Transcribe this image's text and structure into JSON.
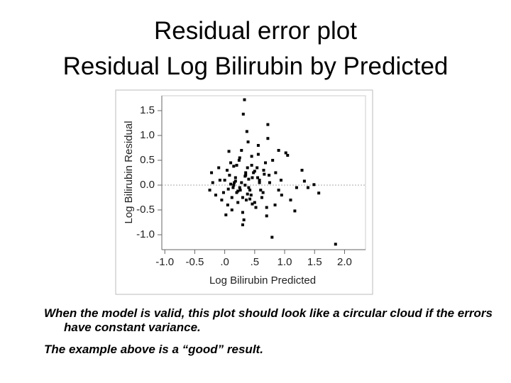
{
  "slide_title": [
    "Residual error plot",
    "Residual Log Bilirubin by Predicted"
  ],
  "chart_data": {
    "type": "scatter",
    "xlabel": "Log Bilirubin Predicted",
    "ylabel": "Log Bilirubin Residual",
    "color": "#000000",
    "xlim": [
      -1.05,
      2.35
    ],
    "ylim": [
      -1.3,
      1.8
    ],
    "xticks": [
      {
        "value": -1,
        "label": "-1.0"
      },
      -0.5,
      {
        "value": 0,
        "label": ".0"
      },
      {
        "value": 0.5,
        "label": ".5"
      },
      {
        "value": 1,
        "label": "1.0"
      },
      1.5,
      {
        "value": 2,
        "label": "2.0"
      }
    ],
    "yticks": [
      {
        "value": -1,
        "label": "-1.0"
      },
      -0.5,
      {
        "value": 0,
        "label": "0.0"
      },
      0.5,
      {
        "value": 1,
        "label": "1.0"
      },
      1.5
    ],
    "x": [
      0.33,
      0.31,
      0.37,
      0.39,
      0.72,
      0.72,
      0.56,
      0.9,
      1.02,
      1.85,
      0.79,
      0.07,
      1.29,
      1.49,
      1.57,
      1.39,
      1.33,
      1.17,
      -0.22,
      -0.25,
      -0.2,
      -0.15,
      -0.1,
      -0.05,
      0,
      0.05,
      0.1,
      0.15,
      0.2,
      0.25,
      0.3,
      0.35,
      0.4,
      0.45,
      0.5,
      0.55,
      0.6,
      0.65,
      0.7,
      0.8,
      0.85,
      0.95,
      1.05,
      1.1,
      0.02,
      0.08,
      0.12,
      0.18,
      0.22,
      0.28,
      0.32,
      0.38,
      0.42,
      0.48,
      0.52,
      0.58,
      0.62,
      0.68,
      0.75,
      -0.08,
      -0.02,
      0.04,
      0.14,
      0.24,
      0.34,
      0.44,
      0.54,
      0.64,
      0.74,
      0.84,
      0.94,
      0.16,
      0.26,
      0.36,
      0.46,
      0.56,
      0.06,
      0.12,
      0.2,
      0.3,
      0.4,
      0.5,
      0.1,
      0.22,
      0.34,
      0.46,
      0.58,
      0.7,
      0.28,
      0.38,
      0.18,
      0.42,
      0.66,
      0.9,
      1.2,
      0.15,
      0.3,
      0.45,
      0.25,
      0.35
    ],
    "values": [
      1.72,
      1.43,
      1.08,
      0.87,
      1.22,
      0.94,
      0.8,
      0.7,
      0.65,
      -1.19,
      -1.05,
      0.68,
      0.3,
      0.01,
      -0.16,
      -0.05,
      0.08,
      -0.52,
      0.25,
      -0.1,
      0.05,
      -0.2,
      0.35,
      -0.3,
      0.1,
      -0.4,
      0.45,
      0.0,
      -0.15,
      0.55,
      -0.25,
      0.2,
      -0.05,
      0.4,
      -0.35,
      0.15,
      -0.1,
      0.3,
      -0.45,
      0.5,
      0.25,
      -0.2,
      0.6,
      -0.3,
      -0.6,
      0.2,
      -0.5,
      0.15,
      -0.35,
      0.05,
      -0.7,
      0.35,
      -0.1,
      0.25,
      -0.45,
      0.1,
      -0.25,
      0.45,
      0.05,
      0.1,
      -0.15,
      0.3,
      -0.05,
      0.5,
      0.0,
      -0.2,
      0.35,
      -0.15,
      0.2,
      -0.4,
      0.1,
      0.05,
      -0.1,
      -0.3,
      0.15,
      0.62,
      -0.08,
      -0.25,
      0.4,
      -0.55,
      0.12,
      0.28,
      0.02,
      -0.12,
      0.18,
      -0.38,
      0.05,
      -0.62,
      0.7,
      -0.18,
      0.08,
      -0.28,
      0.22,
      -0.1,
      -0.05,
      0.38,
      -0.8,
      0.58,
      -0.05,
      0.25
    ]
  },
  "notes": [
    "When the model is valid, this plot should look like a circular cloud if the errors have constant variance.",
    "The example above is a “good” result."
  ]
}
